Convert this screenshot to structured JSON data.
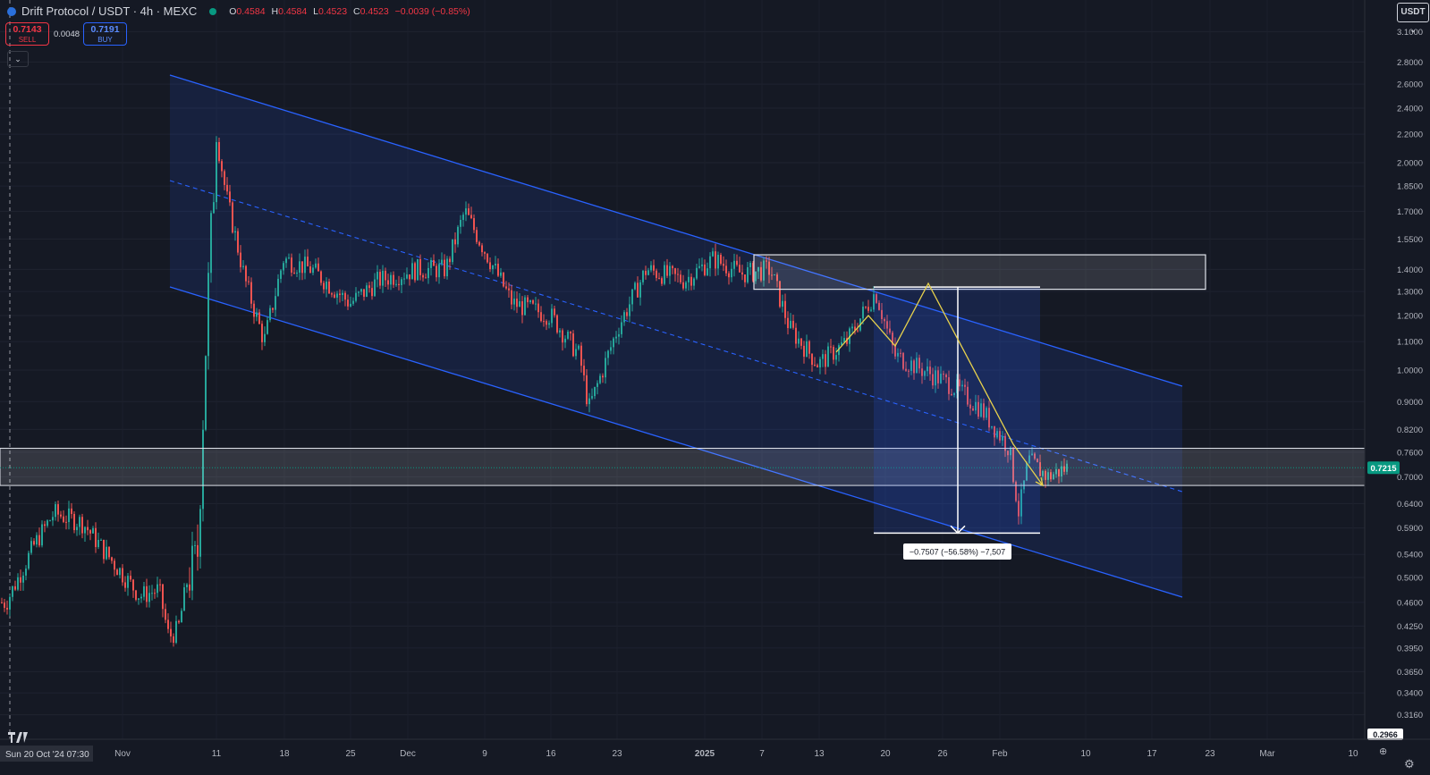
{
  "header": {
    "symbol": "Drift Protocol / USDT · 4h · MEXC",
    "ohlc": [
      {
        "k": "O",
        "v": "0.4584"
      },
      {
        "k": "H",
        "v": "0.4584"
      },
      {
        "k": "L",
        "v": "0.4523"
      },
      {
        "k": "C",
        "v": "0.4523"
      }
    ],
    "change": "−0.0039 (−0.85%)"
  },
  "trade": {
    "sell_price": "0.7143",
    "sell_label": "SELL",
    "spread": "0.0048",
    "buy_price": "0.7191",
    "buy_label": "BUY"
  },
  "currency_button": "USDT",
  "colors": {
    "background": "#151924",
    "up": "#26a69a",
    "down": "#ef5350",
    "channel": "#2962ff",
    "projection": "#e8d24c",
    "current_price": "#089981"
  },
  "price_axis": {
    "ticks": [
      "3.1000",
      "2.8000",
      "2.6000",
      "2.4000",
      "2.2000",
      "2.0000",
      "1.8500",
      "1.7000",
      "1.5500",
      "1.4000",
      "1.3000",
      "1.2000",
      "1.1000",
      "1.0000",
      "0.9000",
      "0.8200",
      "0.7600",
      "0.7000",
      "0.6400",
      "0.5900",
      "0.5400",
      "0.5000",
      "0.4600",
      "0.4250",
      "0.3950",
      "0.3650",
      "0.3400",
      "0.3160"
    ],
    "current_price": "0.7215",
    "bottom_label": "0.2966"
  },
  "time_axis": {
    "crosshair_label": "Sun 20 Oct '24",
    "crosshair_time": "07:30",
    "ticks": [
      "Nov",
      "11",
      "18",
      "25",
      "Dec",
      "9",
      "16",
      "23",
      "2025",
      "7",
      "13",
      "20",
      "26",
      "Feb",
      "10",
      "17",
      "23",
      "Mar",
      "10"
    ]
  },
  "measure_label": "−0.7507 (−56.58%) −7,507",
  "chart_data": {
    "type": "candlestick",
    "title": "Drift Protocol / USDT · 4h · MEXC",
    "y_scale": "log",
    "ylim": [
      0.2966,
      3.2
    ],
    "xlim": [
      "2024-10-20",
      "2025-03-11"
    ],
    "last_price": 0.7215,
    "closes": [
      {
        "date": "2024-10-20",
        "close": 0.46
      },
      {
        "date": "2024-10-23",
        "close": 0.56
      },
      {
        "date": "2024-10-25",
        "close": 0.62
      },
      {
        "date": "2024-10-28",
        "close": 0.6
      },
      {
        "date": "2024-10-31",
        "close": 0.53
      },
      {
        "date": "2024-11-03",
        "close": 0.47
      },
      {
        "date": "2024-11-05",
        "close": 0.48
      },
      {
        "date": "2024-11-06",
        "close": 0.41
      },
      {
        "date": "2024-11-07",
        "close": 0.42
      },
      {
        "date": "2024-11-08",
        "close": 0.5
      },
      {
        "date": "2024-11-09",
        "close": 0.53
      },
      {
        "date": "2024-11-10",
        "close": 1.2
      },
      {
        "date": "2024-11-11",
        "close": 2.2
      },
      {
        "date": "2024-11-12",
        "close": 1.8
      },
      {
        "date": "2024-11-14",
        "close": 1.35
      },
      {
        "date": "2024-11-16",
        "close": 1.1
      },
      {
        "date": "2024-11-18",
        "close": 1.45
      },
      {
        "date": "2024-11-21",
        "close": 1.4
      },
      {
        "date": "2024-11-25",
        "close": 1.25
      },
      {
        "date": "2024-11-28",
        "close": 1.35
      },
      {
        "date": "2024-12-02",
        "close": 1.4
      },
      {
        "date": "2024-12-05",
        "close": 1.4
      },
      {
        "date": "2024-12-07",
        "close": 1.7
      },
      {
        "date": "2024-12-09",
        "close": 1.5
      },
      {
        "date": "2024-12-12",
        "close": 1.25
      },
      {
        "date": "2024-12-16",
        "close": 1.2
      },
      {
        "date": "2024-12-19",
        "close": 1.05
      },
      {
        "date": "2024-12-20",
        "close": 0.88
      },
      {
        "date": "2024-12-23",
        "close": 1.15
      },
      {
        "date": "2024-12-26",
        "close": 1.4
      },
      {
        "date": "2024-12-30",
        "close": 1.35
      },
      {
        "date": "2025-01-02",
        "close": 1.45
      },
      {
        "date": "2025-01-05",
        "close": 1.38
      },
      {
        "date": "2025-01-08",
        "close": 1.4
      },
      {
        "date": "2025-01-10",
        "close": 1.15
      },
      {
        "date": "2025-01-13",
        "close": 1.02
      },
      {
        "date": "2025-01-16",
        "close": 1.1
      },
      {
        "date": "2025-01-19",
        "close": 1.3
      },
      {
        "date": "2025-01-21",
        "close": 1.05
      },
      {
        "date": "2025-01-24",
        "close": 1.0
      },
      {
        "date": "2025-01-27",
        "close": 0.95
      },
      {
        "date": "2025-01-30",
        "close": 0.88
      },
      {
        "date": "2025-02-02",
        "close": 0.77
      },
      {
        "date": "2025-02-03",
        "close": 0.62
      },
      {
        "date": "2025-02-04",
        "close": 0.74
      },
      {
        "date": "2025-02-06",
        "close": 0.7
      },
      {
        "date": "2025-02-08",
        "close": 0.7215
      }
    ],
    "annotations": {
      "price_zone_upper": [
        1.31,
        1.47
      ],
      "price_zone_lower": [
        0.68,
        0.77
      ],
      "measure": {
        "from": 1.32,
        "to": 0.58,
        "label": "−0.7507 (−56.58%) −7,507"
      }
    }
  }
}
